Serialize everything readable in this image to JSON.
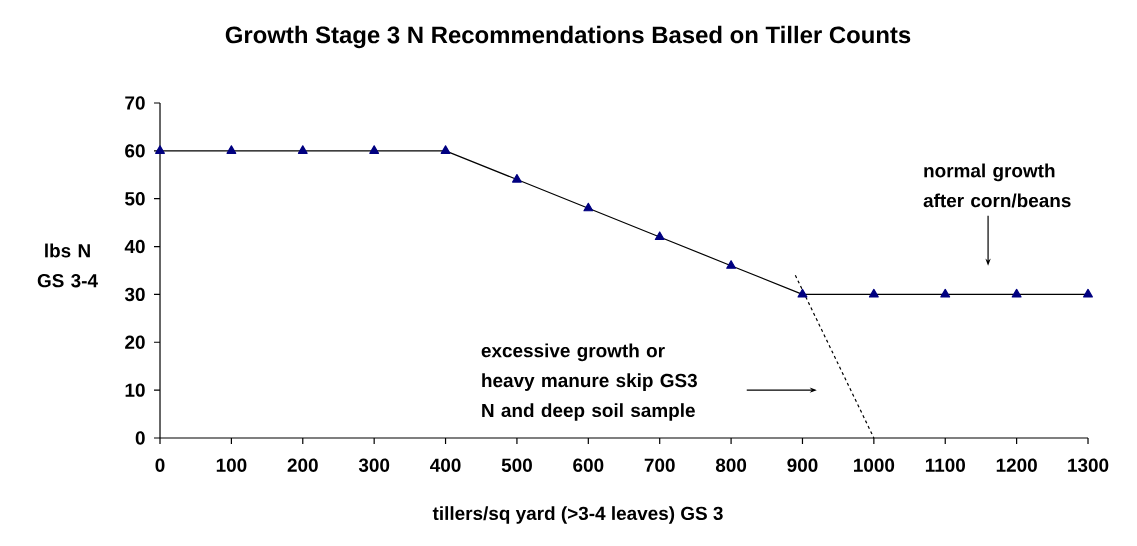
{
  "chart_data": {
    "type": "line",
    "title": "Growth Stage 3 N Recommendations Based on Tiller Counts",
    "xlabel": "tillers/sq yard (>3-4 leaves) GS 3",
    "ylabel": "lbs N GS 3-4",
    "x": [
      0,
      100,
      200,
      300,
      400,
      500,
      600,
      700,
      800,
      900,
      1000,
      1100,
      1200,
      1300
    ],
    "series": [
      {
        "color": "#000080",
        "values": [
          60,
          60,
          60,
          60,
          60,
          54,
          48,
          42,
          36,
          30,
          30,
          30,
          30,
          30
        ]
      },
      {
        "type": "line",
        "x": [
          890,
          1000
        ],
        "values": [
          34,
          0
        ],
        "color": "#000000",
        "line_style": "dashed",
        "marker": "none"
      }
    ],
    "marker": "triangle",
    "line_style": "solid",
    "xlim": [
      0,
      1300
    ],
    "xticks": [
      0,
      100,
      200,
      300,
      400,
      500,
      600,
      700,
      800,
      900,
      1000,
      1100,
      1200,
      1300
    ],
    "ylim": [
      0,
      70
    ],
    "yticks": [
      0,
      10,
      20,
      30,
      40,
      50,
      60,
      70
    ],
    "annotations": [
      "normal growth after corn/beans",
      "excessive growth or heavy manure skip GS3 N and deep soil sample"
    ]
  }
}
